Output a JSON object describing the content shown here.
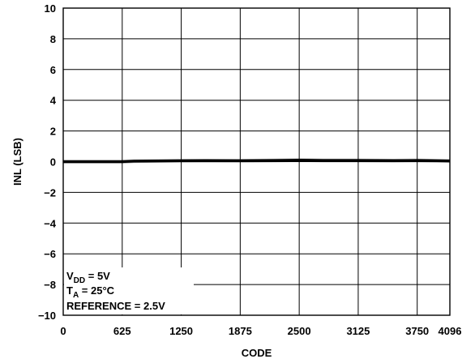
{
  "chart_data": {
    "type": "line",
    "xlabel": "CODE",
    "ylabel": "INL (LSB)",
    "xlim": [
      0,
      4096
    ],
    "ylim": [
      -10,
      10
    ],
    "x_ticks": [
      0,
      625,
      1250,
      1875,
      2500,
      3125,
      3750,
      4096
    ],
    "x_tick_labels": [
      "0",
      "625",
      "1250",
      "1875",
      "2500",
      "3125",
      "3750",
      "4096"
    ],
    "y_ticks": [
      10,
      8,
      6,
      4,
      2,
      0,
      -2,
      -4,
      -6,
      -8,
      -10
    ],
    "y_tick_labels": [
      "10",
      "8",
      "6",
      "4",
      "2",
      "0",
      "−2",
      "−4",
      "−6",
      "−8",
      "−10"
    ],
    "grid": true,
    "series": [
      {
        "color": "#000000",
        "x": [
          0,
          250,
          500,
          625,
          750,
          1000,
          1250,
          1500,
          1875,
          2000,
          2250,
          2500,
          2750,
          3125,
          3500,
          3750,
          4096
        ],
        "y": [
          0.0,
          0.0,
          0.0,
          0.0,
          0.03,
          0.05,
          0.06,
          0.07,
          0.06,
          0.07,
          0.08,
          0.1,
          0.08,
          0.08,
          0.07,
          0.08,
          0.05
        ]
      }
    ],
    "conditions": {
      "vdd": {
        "sym": "V",
        "sub": "DD",
        "rest": " = 5V"
      },
      "ta": {
        "sym": "T",
        "sub": "A",
        "rest": " = 25°C"
      },
      "reference": "REFERENCE = 2.5V"
    }
  }
}
